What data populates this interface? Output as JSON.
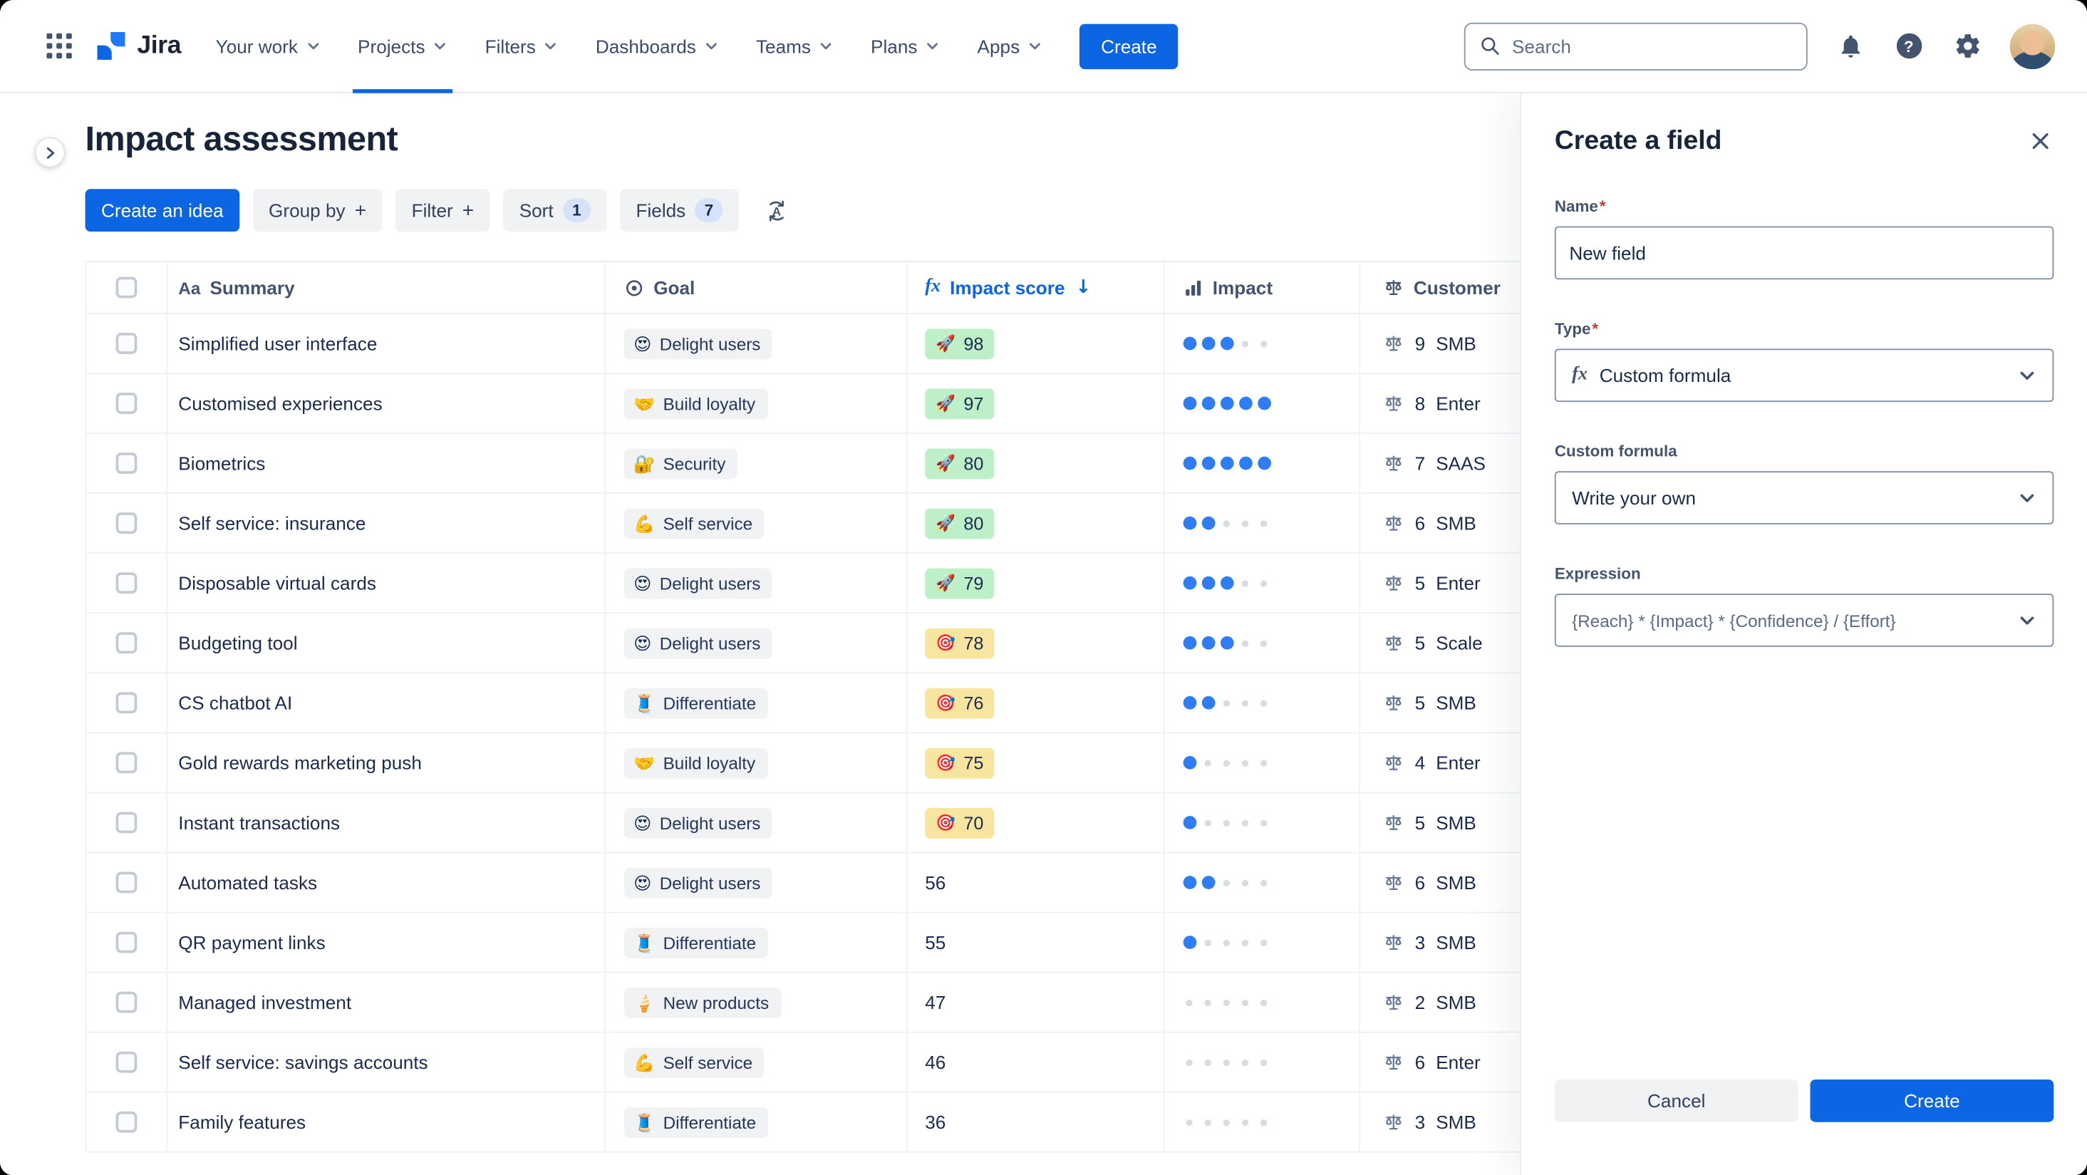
{
  "topnav": {
    "brand": "Jira",
    "items": [
      {
        "label": "Your work"
      },
      {
        "label": "Projects",
        "active": true
      },
      {
        "label": "Filters"
      },
      {
        "label": "Dashboards"
      },
      {
        "label": "Teams"
      },
      {
        "label": "Plans"
      },
      {
        "label": "Apps"
      }
    ],
    "create_button": "Create",
    "search_placeholder": "Search"
  },
  "page": {
    "title": "Impact assessment"
  },
  "toolbar": {
    "create_idea": "Create an idea",
    "group_by": "Group by",
    "filter": "Filter",
    "sort": "Sort",
    "sort_count": "1",
    "fields": "Fields",
    "fields_count": "7"
  },
  "icons": {
    "aa": "Aa",
    "fx": "fx",
    "plus": "+",
    "sort_desc": "↓",
    "question": "?"
  },
  "table": {
    "columns": {
      "summary": "Summary",
      "goal": "Goal",
      "impact_score": "Impact score",
      "impact": "Impact",
      "customer": "Customer"
    },
    "rows": [
      {
        "summary": "Simplified user interface",
        "goal_emoji": "😍",
        "goal": "Delight users",
        "score": 98,
        "score_tier": "green",
        "score_emoji": "🚀",
        "impact": 3,
        "customer_count": 9,
        "customer_segment": "SMB"
      },
      {
        "summary": "Customised experiences",
        "goal_emoji": "🤝",
        "goal": "Build loyalty",
        "score": 97,
        "score_tier": "green",
        "score_emoji": "🚀",
        "impact": 5,
        "customer_count": 8,
        "customer_segment": "Enter"
      },
      {
        "summary": "Biometrics",
        "goal_emoji": "🔐",
        "goal": "Security",
        "score": 80,
        "score_tier": "green",
        "score_emoji": "🚀",
        "impact": 5,
        "customer_count": 7,
        "customer_segment": "SAAS"
      },
      {
        "summary": "Self service: insurance",
        "goal_emoji": "💪",
        "goal": "Self service",
        "score": 80,
        "score_tier": "green",
        "score_emoji": "🚀",
        "impact": 2,
        "customer_count": 6,
        "customer_segment": "SMB"
      },
      {
        "summary": "Disposable virtual cards",
        "goal_emoji": "😍",
        "goal": "Delight users",
        "score": 79,
        "score_tier": "green",
        "score_emoji": "🚀",
        "impact": 3,
        "customer_count": 5,
        "customer_segment": "Enter"
      },
      {
        "summary": "Budgeting tool",
        "goal_emoji": "😍",
        "goal": "Delight users",
        "score": 78,
        "score_tier": "yellow",
        "score_emoji": "🎯",
        "impact": 3,
        "customer_count": 5,
        "customer_segment": "Scale"
      },
      {
        "summary": "CS chatbot AI",
        "goal_emoji": "🧵",
        "goal": "Differentiate",
        "score": 76,
        "score_tier": "yellow",
        "score_emoji": "🎯",
        "impact": 2,
        "customer_count": 5,
        "customer_segment": "SMB"
      },
      {
        "summary": "Gold rewards marketing push",
        "goal_emoji": "🤝",
        "goal": "Build loyalty",
        "score": 75,
        "score_tier": "yellow",
        "score_emoji": "🎯",
        "impact": 1,
        "customer_count": 4,
        "customer_segment": "Enter"
      },
      {
        "summary": "Instant transactions",
        "goal_emoji": "😍",
        "goal": "Delight users",
        "score": 70,
        "score_tier": "yellow",
        "score_emoji": "🎯",
        "impact": 1,
        "customer_count": 5,
        "customer_segment": "SMB"
      },
      {
        "summary": "Automated tasks",
        "goal_emoji": "😍",
        "goal": "Delight users",
        "score": 56,
        "score_tier": "none",
        "score_emoji": "",
        "impact": 2,
        "customer_count": 6,
        "customer_segment": "SMB"
      },
      {
        "summary": "QR payment links",
        "goal_emoji": "🧵",
        "goal": "Differentiate",
        "score": 55,
        "score_tier": "none",
        "score_emoji": "",
        "impact": 1,
        "customer_count": 3,
        "customer_segment": "SMB"
      },
      {
        "summary": "Managed investment",
        "goal_emoji": "🍦",
        "goal": "New products",
        "score": 47,
        "score_tier": "none",
        "score_emoji": "",
        "impact": 0,
        "customer_count": 2,
        "customer_segment": "SMB"
      },
      {
        "summary": "Self service: savings accounts",
        "goal_emoji": "💪",
        "goal": "Self service",
        "score": 46,
        "score_tier": "none",
        "score_emoji": "",
        "impact": 0,
        "customer_count": 6,
        "customer_segment": "Enter"
      },
      {
        "summary": "Family features",
        "goal_emoji": "🧵",
        "goal": "Differentiate",
        "score": 36,
        "score_tier": "none",
        "score_emoji": "",
        "impact": 0,
        "customer_count": 3,
        "customer_segment": "SMB"
      }
    ]
  },
  "panel": {
    "title": "Create a field",
    "required_mark": "*",
    "name_label": "Name",
    "name_value": "New field",
    "type_label": "Type",
    "type_value": "Custom formula",
    "formula_label": "Custom formula",
    "formula_value": "Write your own",
    "expression_label": "Expression",
    "expression_value": "{Reach} * {Impact} * {Confidence} / {Effort}",
    "cancel_button": "Cancel",
    "create_button": "Create"
  },
  "colors": {
    "accent": "#0C66E4",
    "score_green": "#BDF0C8",
    "score_yellow": "#F8E6A0",
    "impact_dot": "#2E7DF6"
  }
}
